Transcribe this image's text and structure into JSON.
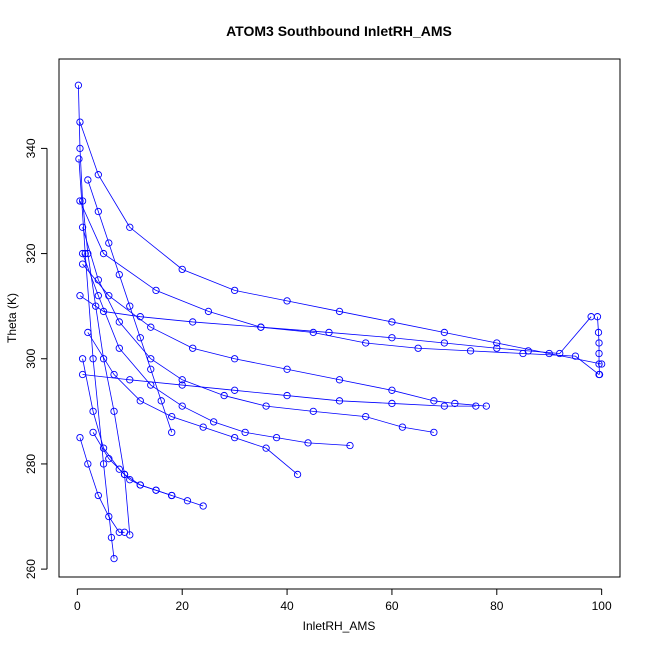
{
  "chart_data": {
    "type": "scatter",
    "title": "ATOM3 Southbound InletRH_AMS",
    "xlabel": "InletRH_AMS",
    "ylabel": "Theta (K)",
    "xlim": [
      -3.5,
      103.5
    ],
    "ylim": [
      258.5,
      357
    ],
    "xticks": [
      0,
      20,
      40,
      60,
      80,
      100
    ],
    "yticks": [
      260,
      280,
      300,
      320,
      340
    ],
    "grid": false,
    "legend": "none",
    "point_style": "open circle with connecting line",
    "series_color": "#0000ff",
    "series": [
      {
        "x": [
          0.2,
          0.5,
          1.0,
          2.0,
          3.5,
          5.0,
          7.0,
          9.0,
          10.0
        ],
        "y": [
          352,
          340,
          330,
          320,
          310,
          300,
          290,
          278,
          266.5
        ]
      },
      {
        "x": [
          0.3,
          1.5,
          3.0,
          5.0,
          6.5,
          7.0
        ],
        "y": [
          338,
          320,
          300,
          280,
          266,
          262
        ]
      },
      {
        "x": [
          0.5,
          4,
          10,
          20,
          30,
          40,
          50,
          60,
          70,
          80,
          90,
          100
        ],
        "y": [
          345,
          335,
          325,
          317,
          313,
          311,
          309,
          307,
          305,
          303,
          301,
          299
        ]
      },
      {
        "x": [
          0.5,
          5,
          15,
          25,
          35,
          45,
          55,
          65,
          75,
          85,
          95,
          99.5
        ],
        "y": [
          330,
          320,
          313,
          309,
          306,
          305,
          303,
          302,
          301.5,
          301,
          300.5,
          297
        ]
      },
      {
        "x": [
          99.2,
          99.4,
          99.5,
          99.5,
          99.5,
          99.6
        ],
        "y": [
          308,
          305,
          303,
          301,
          299,
          297
        ]
      },
      {
        "x": [
          1,
          6,
          14,
          22,
          30,
          40,
          50,
          60,
          68,
          72,
          78
        ],
        "y": [
          318,
          312,
          306,
          302,
          300,
          298,
          296,
          294,
          292,
          291.5,
          291
        ]
      },
      {
        "x": [
          1,
          4,
          8,
          14,
          20,
          26,
          32,
          38,
          44,
          52
        ],
        "y": [
          320,
          312,
          302,
          295,
          291,
          288,
          286,
          285,
          284,
          283.5
        ]
      },
      {
        "x": [
          2,
          7,
          12,
          18,
          24,
          30,
          36,
          42
        ],
        "y": [
          305,
          297,
          292,
          289,
          287,
          285,
          283,
          278
        ]
      },
      {
        "x": [
          1,
          3,
          5,
          8,
          10,
          12,
          15,
          18
        ],
        "y": [
          300,
          290,
          283,
          279,
          277,
          276,
          275,
          274
        ]
      },
      {
        "x": [
          1,
          4,
          8,
          14,
          20,
          28,
          36,
          45,
          55,
          62,
          68
        ],
        "y": [
          325,
          315,
          307,
          300,
          296,
          293,
          291,
          290,
          289,
          287,
          286
        ]
      },
      {
        "x": [
          0.5,
          5,
          12,
          22,
          35,
          48,
          60,
          70,
          80,
          86,
          92,
          98
        ],
        "y": [
          312,
          309,
          308,
          307,
          306,
          305,
          304,
          303,
          302,
          301.5,
          301,
          308
        ]
      },
      {
        "x": [
          2,
          4,
          6,
          8,
          10,
          12,
          14,
          16,
          18
        ],
        "y": [
          334,
          328,
          322,
          316,
          310,
          304,
          298,
          292,
          286
        ]
      },
      {
        "x": [
          3,
          6,
          9,
          12,
          15,
          18,
          21,
          24
        ],
        "y": [
          286,
          281,
          278,
          276,
          275,
          274,
          273,
          272
        ]
      },
      {
        "x": [
          1,
          10,
          20,
          30,
          40,
          50,
          60,
          70,
          76
        ],
        "y": [
          297,
          296,
          295,
          294,
          293,
          292,
          291.5,
          291,
          291
        ]
      },
      {
        "x": [
          0.5,
          2,
          4,
          6,
          8,
          9
        ],
        "y": [
          285,
          280,
          274,
          270,
          267,
          267
        ]
      }
    ]
  }
}
